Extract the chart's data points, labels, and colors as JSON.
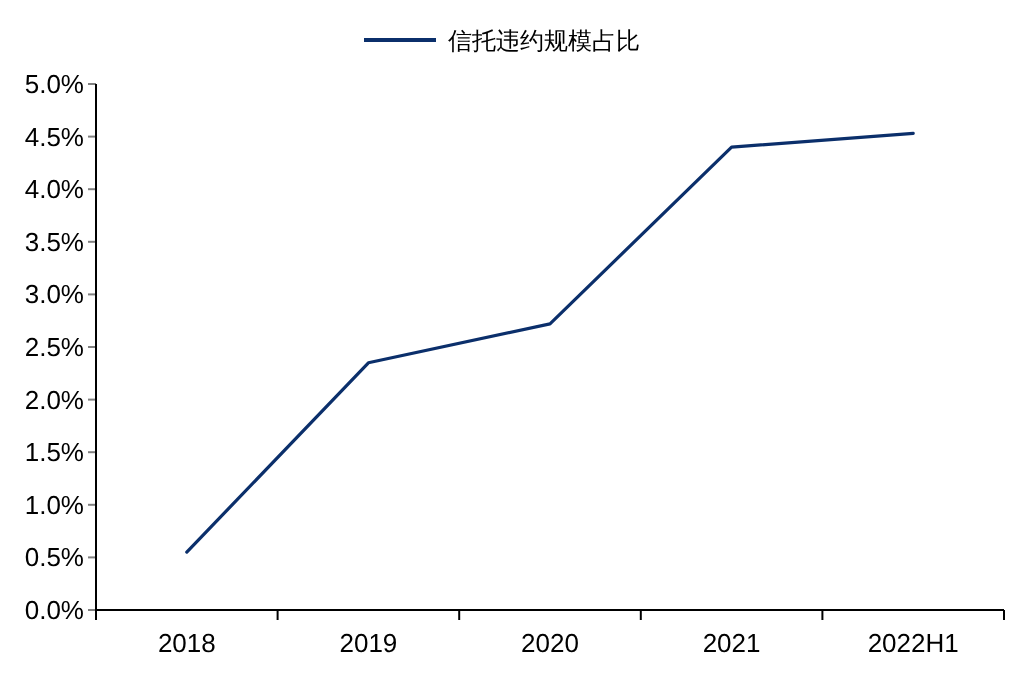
{
  "chart_data": {
    "type": "line",
    "categories": [
      "2018",
      "2019",
      "2020",
      "2021",
      "2022H1"
    ],
    "series": [
      {
        "name": "信托违约规模占比",
        "color": "#0b2f6b",
        "values": [
          0.55,
          2.35,
          2.72,
          4.4,
          4.53
        ]
      }
    ],
    "ylim": [
      0,
      5
    ],
    "yticks": [
      {
        "value": 0,
        "label": "0.0%"
      },
      {
        "value": 0.5,
        "label": "0.5%"
      },
      {
        "value": 1,
        "label": "1.0%"
      },
      {
        "value": 1.5,
        "label": "1.5%"
      },
      {
        "value": 2,
        "label": "2.0%"
      },
      {
        "value": 2.5,
        "label": "2.5%"
      },
      {
        "value": 3,
        "label": "3.0%"
      },
      {
        "value": 3.5,
        "label": "3.5%"
      },
      {
        "value": 4,
        "label": "4.0%"
      },
      {
        "value": 4.5,
        "label": "4.5%"
      },
      {
        "value": 5,
        "label": "5.0%"
      }
    ],
    "legend": "top"
  }
}
